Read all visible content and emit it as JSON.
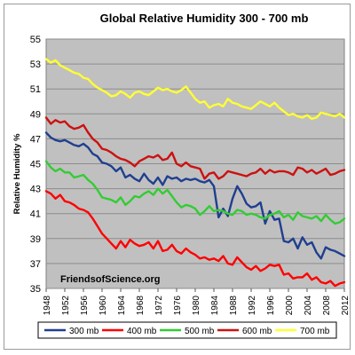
{
  "chart_data": {
    "type": "line",
    "title": "Global Relative Humidity 300 - 700 mb",
    "ylabel": "Relative Humidity %",
    "xlabel": "",
    "annotation": "FriendsofScience.org",
    "xlim": [
      1948,
      2012
    ],
    "ylim": [
      35,
      55
    ],
    "yticks": [
      35,
      37,
      39,
      41,
      43,
      45,
      47,
      49,
      51,
      53,
      55
    ],
    "xticks": [
      1948,
      1952,
      1956,
      1960,
      1964,
      1968,
      1972,
      1976,
      1980,
      1984,
      1988,
      1992,
      1996,
      2000,
      2004,
      2008,
      2012
    ],
    "grid": "horizontal",
    "legend_position": "bottom",
    "series": [
      {
        "name": "300 mb",
        "color": "#1f3f8f",
        "x": [
          1948,
          1949,
          1950,
          1951,
          1952,
          1953,
          1954,
          1955,
          1956,
          1957,
          1958,
          1959,
          1960,
          1961,
          1962,
          1963,
          1964,
          1965,
          1966,
          1967,
          1968,
          1969,
          1970,
          1971,
          1972,
          1973,
          1974,
          1975,
          1976,
          1977,
          1978,
          1979,
          1980,
          1981,
          1982,
          1983,
          1984,
          1985,
          1986,
          1987,
          1988,
          1989,
          1990,
          1991,
          1992,
          1993,
          1994,
          1995,
          1996,
          1997,
          1998,
          1999,
          2000,
          2001,
          2002,
          2003,
          2004,
          2005,
          2006,
          2007,
          2008,
          2009,
          2010,
          2011,
          2012
        ],
        "y": [
          47.5,
          47.1,
          46.9,
          46.8,
          46.9,
          46.7,
          46.5,
          46.4,
          46.6,
          46.3,
          45.8,
          45.6,
          45.1,
          45.0,
          44.8,
          44.4,
          44.7,
          43.9,
          44.1,
          43.8,
          43.6,
          44.2,
          43.7,
          43.4,
          43.9,
          43.3,
          44.0,
          43.8,
          43.9,
          43.6,
          43.8,
          43.7,
          43.8,
          43.6,
          43.5,
          43.7,
          43.2,
          40.7,
          41.4,
          40.8,
          42.2,
          43.2,
          42.6,
          41.8,
          41.5,
          41.6,
          41.9,
          40.2,
          41.2,
          40.5,
          40.6,
          38.8,
          38.7,
          39.0,
          38.2,
          39.1,
          38.5,
          38.7,
          37.9,
          37.4,
          38.3,
          38.1,
          38.0,
          37.8,
          37.6
        ]
      },
      {
        "name": "400 mb",
        "color": "#ff0000",
        "x": [
          1948,
          1949,
          1950,
          1951,
          1952,
          1953,
          1954,
          1955,
          1956,
          1957,
          1958,
          1959,
          1960,
          1961,
          1962,
          1963,
          1964,
          1965,
          1966,
          1967,
          1968,
          1969,
          1970,
          1971,
          1972,
          1973,
          1974,
          1975,
          1976,
          1977,
          1978,
          1979,
          1980,
          1981,
          1982,
          1983,
          1984,
          1985,
          1986,
          1987,
          1988,
          1989,
          1990,
          1991,
          1992,
          1993,
          1994,
          1995,
          1996,
          1997,
          1998,
          1999,
          2000,
          2001,
          2002,
          2003,
          2004,
          2005,
          2006,
          2007,
          2008,
          2009,
          2010,
          2011,
          2012
        ],
        "y": [
          42.8,
          42.6,
          42.2,
          42.5,
          42.0,
          41.9,
          41.7,
          41.4,
          41.3,
          41.1,
          40.6,
          40.0,
          39.4,
          39.0,
          38.6,
          38.2,
          38.8,
          38.3,
          38.9,
          38.6,
          38.4,
          38.5,
          38.7,
          38.2,
          38.8,
          38.0,
          38.1,
          38.5,
          38.0,
          37.8,
          38.2,
          37.9,
          37.7,
          37.4,
          37.5,
          37.3,
          37.4,
          37.2,
          37.6,
          37.0,
          36.9,
          37.5,
          37.1,
          36.7,
          36.5,
          36.8,
          36.4,
          36.6,
          36.9,
          36.8,
          36.9,
          36.1,
          36.2,
          35.8,
          35.9,
          35.9,
          36.2,
          35.7,
          35.9,
          35.5,
          35.4,
          35.6,
          35.2,
          35.4,
          35.5
        ]
      },
      {
        "name": "500 mb",
        "color": "#33cc33",
        "x": [
          1948,
          1949,
          1950,
          1951,
          1952,
          1953,
          1954,
          1955,
          1956,
          1957,
          1958,
          1959,
          1960,
          1961,
          1962,
          1963,
          1964,
          1965,
          1966,
          1967,
          1968,
          1969,
          1970,
          1971,
          1972,
          1973,
          1974,
          1975,
          1976,
          1977,
          1978,
          1979,
          1980,
          1981,
          1982,
          1983,
          1984,
          1985,
          1986,
          1987,
          1988,
          1989,
          1990,
          1991,
          1992,
          1993,
          1994,
          1995,
          1996,
          1997,
          1998,
          1999,
          2000,
          2001,
          2002,
          2003,
          2004,
          2005,
          2006,
          2007,
          2008,
          2009,
          2010,
          2011,
          2012
        ],
        "y": [
          45.2,
          44.7,
          44.4,
          44.6,
          44.3,
          44.3,
          43.9,
          44.0,
          44.1,
          43.7,
          43.4,
          42.9,
          42.3,
          42.2,
          42.1,
          41.9,
          42.3,
          41.7,
          42.0,
          42.4,
          42.3,
          42.6,
          42.8,
          42.5,
          43.0,
          42.6,
          42.9,
          42.4,
          41.9,
          41.5,
          41.7,
          41.6,
          41.4,
          40.9,
          41.2,
          41.6,
          41.2,
          41.3,
          41.2,
          41.0,
          40.9,
          41.3,
          41.2,
          40.9,
          41.0,
          40.9,
          40.7,
          40.6,
          40.9,
          41.0,
          41.2,
          40.7,
          40.9,
          40.5,
          41.1,
          40.8,
          40.7,
          40.6,
          40.8,
          40.4,
          40.9,
          40.5,
          40.2,
          40.3,
          40.6
        ]
      },
      {
        "name": "600 mb",
        "color": "#cc1111",
        "x": [
          1948,
          1949,
          1950,
          1951,
          1952,
          1953,
          1954,
          1955,
          1956,
          1957,
          1958,
          1959,
          1960,
          1961,
          1962,
          1963,
          1964,
          1965,
          1966,
          1967,
          1968,
          1969,
          1970,
          1971,
          1972,
          1973,
          1974,
          1975,
          1976,
          1977,
          1978,
          1979,
          1980,
          1981,
          1982,
          1983,
          1984,
          1985,
          1986,
          1987,
          1988,
          1989,
          1990,
          1991,
          1992,
          1993,
          1994,
          1995,
          1996,
          1997,
          1998,
          1999,
          2000,
          2001,
          2002,
          2003,
          2004,
          2005,
          2006,
          2007,
          2008,
          2009,
          2010,
          2011,
          2012
        ],
        "y": [
          48.7,
          48.2,
          48.5,
          48.3,
          48.4,
          48.0,
          47.8,
          47.9,
          48.1,
          47.5,
          47.0,
          46.7,
          46.2,
          46.1,
          45.9,
          45.6,
          45.4,
          45.3,
          45.1,
          44.8,
          45.2,
          45.4,
          45.6,
          45.5,
          45.7,
          45.3,
          45.4,
          45.9,
          45.0,
          44.8,
          45.1,
          44.8,
          44.7,
          44.6,
          43.8,
          44.2,
          44.3,
          43.8,
          44.0,
          44.4,
          44.3,
          44.2,
          44.1,
          44.0,
          44.2,
          44.3,
          44.6,
          44.2,
          44.5,
          44.3,
          44.4,
          44.4,
          44.3,
          44.1,
          44.7,
          44.6,
          44.3,
          44.5,
          44.2,
          44.4,
          44.6,
          44.1,
          44.2,
          44.4,
          44.5
        ]
      },
      {
        "name": "700 mb",
        "color": "#ffff33",
        "x": [
          1948,
          1949,
          1950,
          1951,
          1952,
          1953,
          1954,
          1955,
          1956,
          1957,
          1958,
          1959,
          1960,
          1961,
          1962,
          1963,
          1964,
          1965,
          1966,
          1967,
          1968,
          1969,
          1970,
          1971,
          1972,
          1973,
          1974,
          1975,
          1976,
          1977,
          1978,
          1979,
          1980,
          1981,
          1982,
          1983,
          1984,
          1985,
          1986,
          1987,
          1988,
          1989,
          1990,
          1991,
          1992,
          1993,
          1994,
          1995,
          1996,
          1997,
          1998,
          1999,
          2000,
          2001,
          2002,
          2003,
          2004,
          2005,
          2006,
          2007,
          2008,
          2009,
          2010,
          2011,
          2012
        ],
        "y": [
          53.4,
          53.1,
          53.3,
          52.9,
          52.7,
          52.5,
          52.3,
          52.2,
          51.9,
          51.8,
          51.4,
          51.1,
          50.9,
          50.7,
          50.4,
          50.5,
          50.8,
          50.6,
          50.3,
          50.7,
          50.8,
          50.6,
          50.5,
          50.8,
          51.1,
          50.9,
          51.0,
          50.8,
          50.7,
          50.9,
          51.2,
          50.7,
          50.2,
          49.9,
          50.0,
          49.5,
          49.7,
          49.8,
          49.6,
          50.2,
          49.9,
          49.8,
          49.6,
          49.5,
          49.4,
          49.7,
          50.0,
          49.8,
          49.6,
          49.9,
          49.5,
          49.2,
          48.9,
          49.0,
          48.8,
          48.7,
          48.9,
          48.6,
          48.7,
          49.1,
          49.0,
          48.9,
          48.8,
          49.0,
          48.7
        ]
      }
    ]
  }
}
